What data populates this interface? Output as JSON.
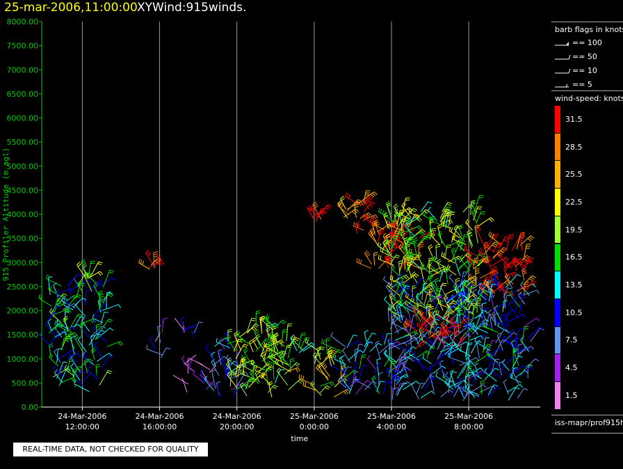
{
  "header": {
    "date_title": "25-mar-2006,11:00:00",
    "product_title": "XYWind:915winds."
  },
  "warning": "REAL-TIME DATA, NOT CHECKED FOR QUALITY",
  "legend": {
    "flags_title": "barb flags in knots",
    "flags": [
      "== 100",
      "== 50",
      "== 10",
      "== 5"
    ],
    "speed_title": "wind-speed: knots",
    "speed_bins": [
      {
        "label": "31.5",
        "color": "#ff0000"
      },
      {
        "label": "28.5",
        "color": "#ff8000"
      },
      {
        "label": "25.5",
        "color": "#ffb000"
      },
      {
        "label": "22.5",
        "color": "#ffff00"
      },
      {
        "label": "19.5",
        "color": "#a0ff30"
      },
      {
        "label": "16.5",
        "color": "#00dd00"
      },
      {
        "label": "13.5",
        "color": "#00ffff"
      },
      {
        "label": "10.5",
        "color": "#0000ff"
      },
      {
        "label": "7.5",
        "color": "#6495ed"
      },
      {
        "label": "4.5",
        "color": "#a020f0"
      },
      {
        "label": "1.5",
        "color": "#ee82ee"
      }
    ],
    "source": "iss-mapr/prof915h"
  },
  "chart_data": {
    "type": "scatter",
    "ylabel": "915 Profiler Altitude (m agl)",
    "xlabel": "time",
    "ylim": [
      0,
      8000
    ],
    "yticks": [
      "8000.00",
      "7500.00",
      "7000.00",
      "6500.00",
      "6000.00",
      "5500.00",
      "5000.00",
      "4500.00",
      "4000.00",
      "3500.00",
      "3000.00",
      "2500.00",
      "2000.00",
      "1500.00",
      "1000.00",
      "500.00",
      "0.00"
    ],
    "xticks": [
      {
        "date": "24-Mar-2006",
        "time": "12:00:00",
        "hour": 12
      },
      {
        "date": "24-Mar-2006",
        "time": "16:00:00",
        "hour": 16
      },
      {
        "date": "24-Mar-2006",
        "time": "20:00:00",
        "hour": 20
      },
      {
        "date": "25-Mar-2006",
        "time": "0:00:00",
        "hour": 24
      },
      {
        "date": "25-Mar-2006",
        "time": "4:00:00",
        "hour": 28
      },
      {
        "date": "25-Mar-2006",
        "time": "8:00:00",
        "hour": 32
      }
    ],
    "xlim_hours": [
      9.9,
      35.7
    ],
    "grid": "vertical lines at major ticks",
    "clusters": [
      {
        "hour_start": 10.2,
        "hour_end": 13.3,
        "alt_low": 300,
        "alt_high": 2600,
        "dominant_speed": 13.5
      },
      {
        "hour_start": 12.0,
        "hour_end": 12.5,
        "alt_low": 2600,
        "alt_high": 2800,
        "dominant_speed": 19.5
      },
      {
        "hour_start": 15.3,
        "hour_end": 15.8,
        "alt_low": 2850,
        "alt_high": 2950,
        "dominant_speed": 28.5
      },
      {
        "hour_start": 15.6,
        "hour_end": 16.2,
        "alt_low": 1000,
        "alt_high": 1600,
        "dominant_speed": 4.5
      },
      {
        "hour_start": 17.2,
        "hour_end": 17.9,
        "alt_low": 1400,
        "alt_high": 1600,
        "dominant_speed": 4.5
      },
      {
        "hour_start": 17.3,
        "hour_end": 18.8,
        "alt_low": 300,
        "alt_high": 900,
        "dominant_speed": 4.5
      },
      {
        "hour_start": 18.8,
        "hour_end": 20.2,
        "alt_low": 200,
        "alt_high": 1300,
        "dominant_speed": 10.5
      },
      {
        "hour_start": 19.5,
        "hour_end": 22.8,
        "alt_low": 200,
        "alt_high": 1700,
        "dominant_speed": 19.5
      },
      {
        "hour_start": 23.0,
        "hour_end": 23.6,
        "alt_low": 1100,
        "alt_high": 1300,
        "dominant_speed": 16.5
      },
      {
        "hour_start": 23.8,
        "hour_end": 24.5,
        "alt_low": 3800,
        "alt_high": 3950,
        "dominant_speed": 31.5
      },
      {
        "hour_start": 24.0,
        "hour_end": 25.4,
        "alt_low": 200,
        "alt_high": 1200,
        "dominant_speed": 22.5
      },
      {
        "hour_start": 25.4,
        "hour_end": 28.3,
        "alt_low": 200,
        "alt_high": 1300,
        "dominant_speed": 10.5
      },
      {
        "hour_start": 25.5,
        "hour_end": 27.0,
        "alt_low": 3600,
        "alt_high": 4300,
        "dominant_speed": 28.5
      },
      {
        "hour_start": 26.8,
        "hour_end": 29.5,
        "alt_low": 2800,
        "alt_high": 3700,
        "dominant_speed": 28.5
      },
      {
        "hour_start": 27.8,
        "hour_end": 32.5,
        "alt_low": 1700,
        "alt_high": 4100,
        "dominant_speed": 19.5
      },
      {
        "hour_start": 27.8,
        "hour_end": 35.2,
        "alt_low": 100,
        "alt_high": 2500,
        "dominant_speed": 10.5
      },
      {
        "hour_start": 29.0,
        "hour_end": 31.5,
        "alt_low": 1200,
        "alt_high": 1800,
        "dominant_speed": 31.5
      },
      {
        "hour_start": 32.2,
        "hour_end": 35.0,
        "alt_low": 2300,
        "alt_high": 3400,
        "dominant_speed": 31.5
      }
    ]
  }
}
